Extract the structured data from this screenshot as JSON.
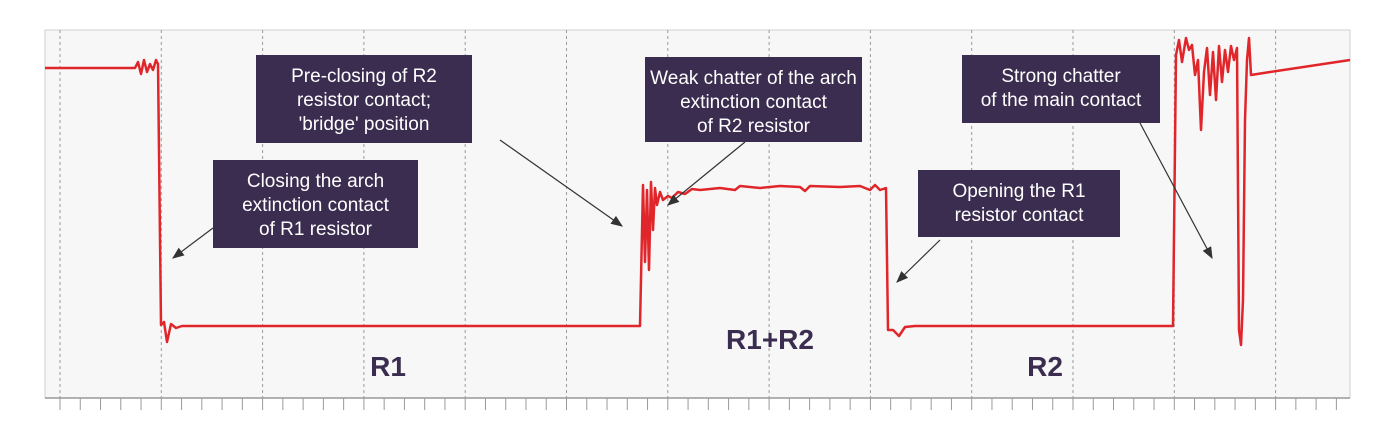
{
  "annotations": [
    {
      "lines": [
        "Closing the arch",
        "extinction contact",
        "of R1 resistor"
      ]
    },
    {
      "lines": [
        "Pre-closing of R2",
        "resistor contact;",
        "'bridge' position"
      ]
    },
    {
      "lines": [
        "Weak chatter of the arch",
        "extinction contact",
        "of R2 resistor"
      ]
    },
    {
      "lines": [
        "Opening the R1",
        "resistor contact"
      ]
    },
    {
      "lines": [
        "Strong chatter",
        "of the main contact"
      ]
    }
  ],
  "region_labels": [
    "R1",
    "R1+R2",
    "R2"
  ]
}
